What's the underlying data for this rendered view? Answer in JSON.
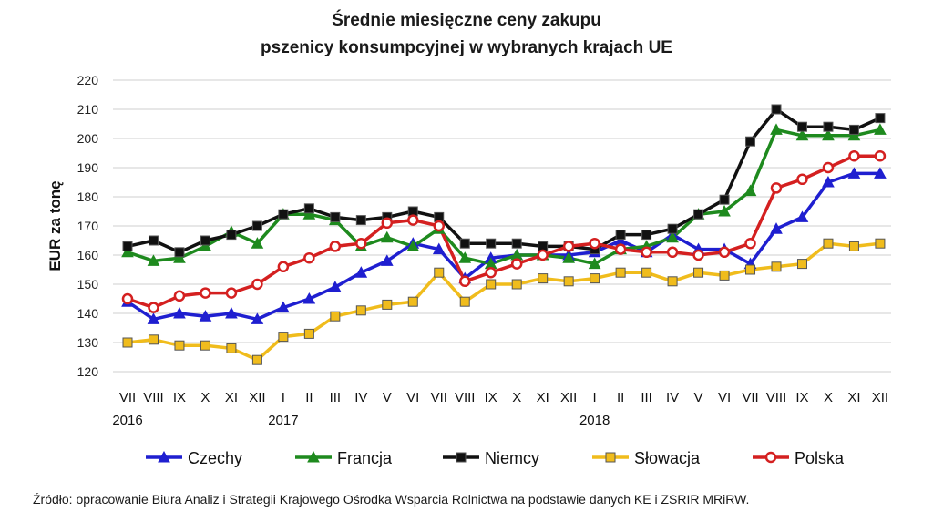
{
  "chart_data": {
    "type": "line",
    "title": "Średnie miesięczne ceny zakupu",
    "subtitle": "pszenicy konsumpcyjnej w wybranych krajach UE",
    "ylabel": "EUR za tonę",
    "xlabel": "",
    "ylim": [
      120,
      220
    ],
    "yticks": [
      120,
      130,
      140,
      150,
      160,
      170,
      180,
      190,
      200,
      210,
      220
    ],
    "categories": [
      "VII",
      "VIII",
      "IX",
      "X",
      "XI",
      "XII",
      "I",
      "II",
      "III",
      "IV",
      "V",
      "VI",
      "VII",
      "VIII",
      "IX",
      "X",
      "XI",
      "XII",
      "I",
      "II",
      "III",
      "IV",
      "V",
      "VI",
      "VII",
      "VIII",
      "IX",
      "X",
      "XI",
      "XII"
    ],
    "year_labels": [
      {
        "index": 0,
        "label": "2016"
      },
      {
        "index": 6,
        "label": "2017"
      },
      {
        "index": 18,
        "label": "2018"
      }
    ],
    "grid": true,
    "legend_position": "bottom",
    "series": [
      {
        "name": "Czechy",
        "color": "#1f1fd0",
        "marker": "triangle",
        "values": [
          144,
          138,
          140,
          139,
          140,
          138,
          142,
          145,
          149,
          154,
          158,
          164,
          162,
          152,
          159,
          160,
          160,
          160,
          161,
          165,
          161,
          167,
          162,
          162,
          157,
          169,
          173,
          185,
          188,
          188
        ]
      },
      {
        "name": "Francja",
        "color": "#1e8a1e",
        "marker": "triangle",
        "values": [
          161,
          158,
          159,
          163,
          168,
          164,
          174,
          174,
          172,
          163,
          166,
          163,
          169,
          159,
          157,
          160,
          160,
          159,
          157,
          162,
          163,
          166,
          174,
          175,
          182,
          203,
          201,
          201,
          201,
          203
        ]
      },
      {
        "name": "Niemcy",
        "color": "#111111",
        "marker": "square",
        "values": [
          163,
          165,
          161,
          165,
          167,
          170,
          174,
          176,
          173,
          172,
          173,
          175,
          173,
          164,
          164,
          164,
          163,
          163,
          162,
          167,
          167,
          169,
          174,
          179,
          199,
          210,
          204,
          204,
          203,
          207
        ]
      },
      {
        "name": "Słowacja",
        "color": "#f0bc1c",
        "marker": "square",
        "values": [
          130,
          131,
          129,
          129,
          128,
          124,
          132,
          133,
          139,
          141,
          143,
          144,
          154,
          144,
          150,
          150,
          152,
          151,
          152,
          154,
          154,
          151,
          154,
          153,
          155,
          156,
          157,
          164,
          163,
          164
        ]
      },
      {
        "name": "Polska",
        "color": "#d42020",
        "marker": "circle",
        "values": [
          145,
          142,
          146,
          147,
          147,
          150,
          156,
          159,
          163,
          164,
          171,
          172,
          170,
          151,
          154,
          157,
          160,
          163,
          164,
          162,
          161,
          161,
          160,
          161,
          164,
          183,
          186,
          190,
          194,
          194
        ]
      }
    ]
  },
  "source_note": "Źródło: opracowanie Biura Analiz i Strategii  Krajowego Ośrodka Wsparcia Rolnictwa na podstawie danych KE i ZSRIR  MRiRW."
}
